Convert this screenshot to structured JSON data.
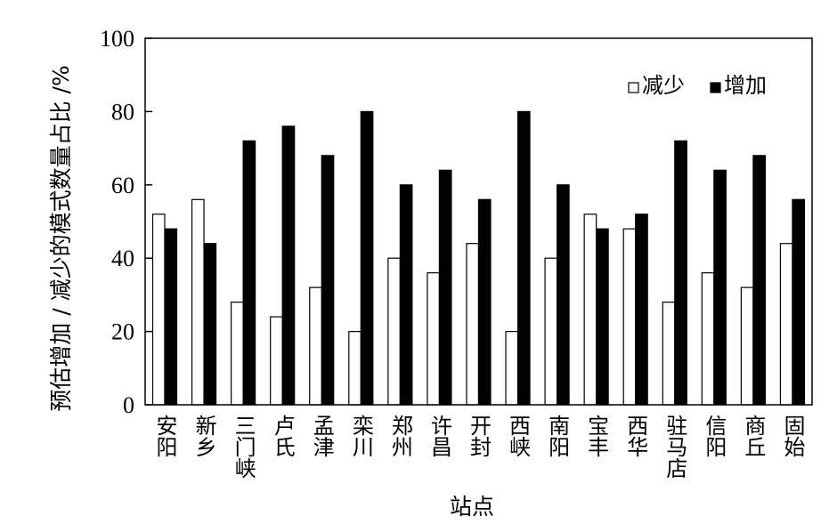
{
  "chart_data": {
    "type": "bar",
    "categories": [
      "安阳",
      "新乡",
      "三门峡",
      "卢氏",
      "孟津",
      "栾川",
      "郑州",
      "许昌",
      "开封",
      "西峡",
      "南阳",
      "宝丰",
      "西华",
      "驻马店",
      "信阳",
      "商丘",
      "固始"
    ],
    "series": [
      {
        "name": "减少",
        "color": "#ffffff",
        "values": [
          52,
          56,
          28,
          24,
          32,
          20,
          40,
          36,
          44,
          20,
          40,
          52,
          48,
          28,
          36,
          32,
          44
        ]
      },
      {
        "name": "增加",
        "color": "#000000",
        "values": [
          48,
          44,
          72,
          76,
          68,
          80,
          60,
          64,
          56,
          80,
          60,
          48,
          52,
          72,
          64,
          68,
          56
        ]
      }
    ],
    "ylim": [
      0,
      100
    ],
    "yticks": [
      0,
      20,
      40,
      60,
      80,
      100
    ],
    "xlabel": "站点",
    "ylabel": "预估增加 / 减少的模式数量占比 /%",
    "legend_position": "top-right",
    "grid": false
  }
}
